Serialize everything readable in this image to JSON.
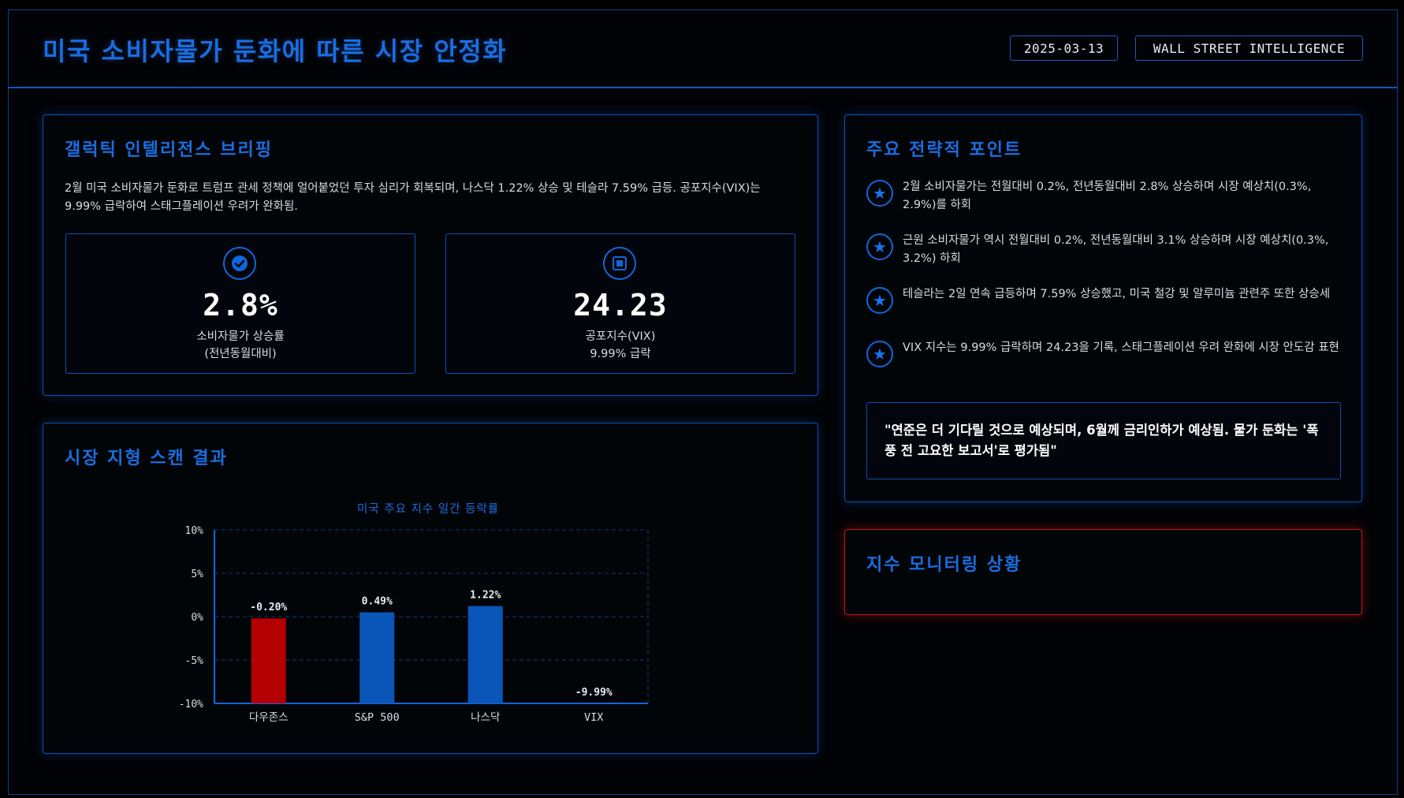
{
  "header": {
    "title": "미국 소비자물가 둔화에 따른 시장 안정화",
    "date": "2025-03-13",
    "brand": "WALL STREET INTELLIGENCE"
  },
  "briefing": {
    "title": "갤럭틱 인텔리전스 브리핑",
    "text": "2월 미국 소비자물가 둔화로 트럼프 관세 정책에 얼어붙었던 투자 심리가 회복되며, 나스닥 1.22% 상승 및 테슬라 7.59% 급등. 공포지수(VIX)는 9.99% 급락하여 스태그플레이션 우려가 완화됨.",
    "metrics": [
      {
        "icon": "check-circle-icon",
        "value": "2.8%",
        "label1": "소비자물가 상승률",
        "label2": "(전년동월대비)"
      },
      {
        "icon": "square-target-icon",
        "value": "24.23",
        "label1": "공포지수(VIX)",
        "label2": "9.99% 급락"
      }
    ]
  },
  "strategy": {
    "title": "주요 전략적 포인트",
    "points": [
      {
        "icon": "star-icon",
        "text": "2월 소비자물가는 전월대비 0.2%, 전년동월대비 2.8% 상승하며 시장 예상치(0.3%, 2.9%)를 하회"
      },
      {
        "icon": "star-icon",
        "text": "근원 소비자물가 역시 전월대비 0.2%, 전년동월대비 3.1% 상승하며 시장 예상치(0.3%, 3.2%) 하회"
      },
      {
        "icon": "star-icon",
        "text": "테슬라는 2일 연속 급등하며 7.59% 상승했고, 미국 철강 및 알루미늄 관련주 또한 상승세"
      },
      {
        "icon": "star-icon",
        "text": "VIX 지수는 9.99% 급락하며 24.23을 기록, 스태그플레이션 우려 완화에 시장 안도감 표현"
      }
    ],
    "quote": "\"연준은 더 기다릴 것으로 예상되며, 6월께 금리인하가 예상됨. 물가 둔화는 '폭풍 전 고요한 보고서'로 평가됨\""
  },
  "market_scan": {
    "title": "시장 지형 스캔 결과"
  },
  "monitoring": {
    "title": "지수 모니터링 상황"
  },
  "colors": {
    "accent": "#1b6de0",
    "positive": "#0a56b8",
    "negative": "#b30000",
    "alert_border": "#c81414"
  },
  "chart_data": {
    "type": "bar",
    "title": "미국 주요 지수 일간 등락률",
    "categories": [
      "다우존스",
      "S&P 500",
      "나스닥",
      "VIX"
    ],
    "values": [
      -0.2,
      0.49,
      1.22,
      -9.99
    ],
    "value_labels": [
      "-0.20%",
      "0.49%",
      "1.22%",
      "-9.99%"
    ],
    "ylim": [
      -10,
      10
    ],
    "yticks": [
      10,
      5,
      0,
      -5,
      -10
    ],
    "ytick_labels": [
      "10%",
      "5%",
      "0%",
      "-5%",
      "-10%"
    ],
    "xlabel": "",
    "ylabel": "",
    "grid": true
  }
}
